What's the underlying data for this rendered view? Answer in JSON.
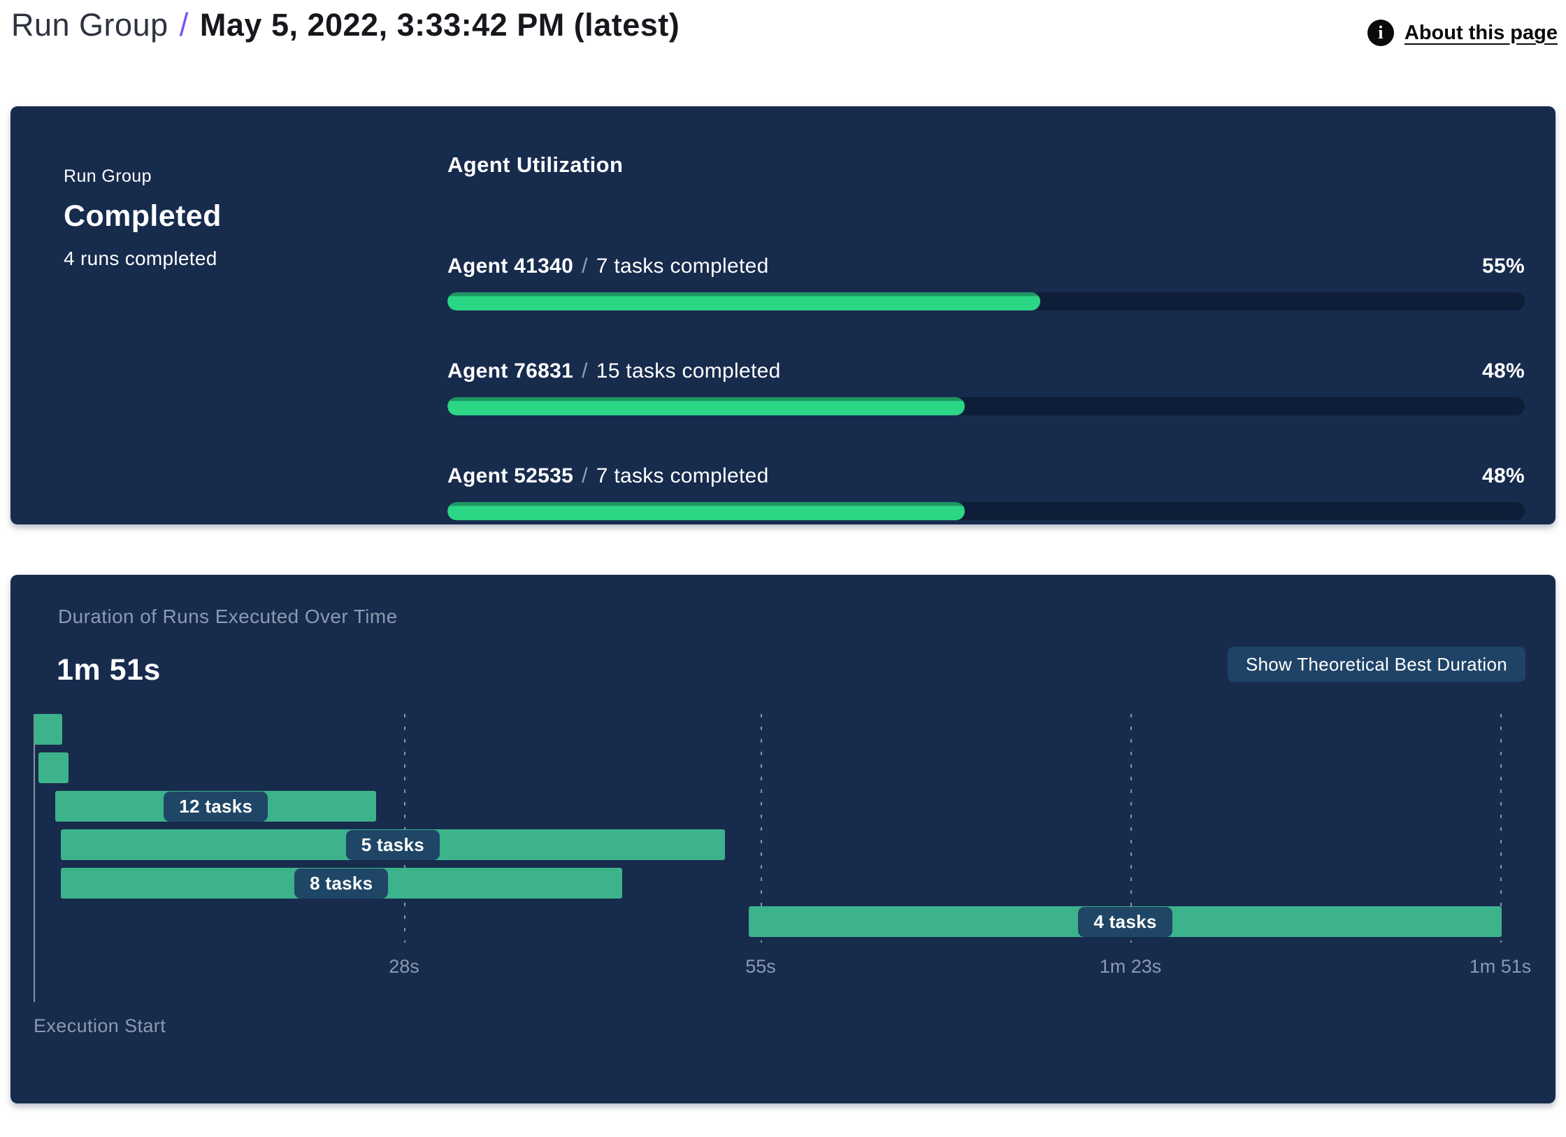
{
  "header": {
    "breadcrumb": "Run Group",
    "separator": "/",
    "title": "May 5, 2022, 3:33:42 PM (latest)",
    "about_link": "About this page",
    "info_icon_glyph": "i"
  },
  "colors": {
    "panel_bg": "#172b4d",
    "track_bg": "#0f1e38",
    "utilization_green": "#2bd685",
    "utilization_green_rim": "#1f9663",
    "gantt_green": "#3cb38b",
    "label_pill_bg": "#1f4666",
    "button_bg": "#1e4367",
    "accent_purple": "#7a52f4",
    "muted_text": "#8c99b0"
  },
  "status_panel": {
    "group_label": "Run Group",
    "status": "Completed",
    "runs_summary": "4 runs completed",
    "utilization_title": "Agent Utilization"
  },
  "duration_panel": {
    "title": "Duration of Runs Executed Over Time",
    "total_duration": "1m 51s",
    "button_label": "Show Theoretical Best Duration",
    "execution_start_label": "Execution Start"
  },
  "chart_data": [
    {
      "type": "bar",
      "title": "Agent Utilization",
      "orientation": "horizontal",
      "unit": "%",
      "xlim": [
        0,
        100
      ],
      "categories": [
        "Agent 41340",
        "Agent 76831",
        "Agent 52535"
      ],
      "annotations": [
        "7 tasks completed",
        "15 tasks completed",
        "7 tasks completed"
      ],
      "values": [
        55,
        48,
        48
      ],
      "value_labels": [
        "55%",
        "48%",
        "48%"
      ],
      "separator": "/"
    },
    {
      "type": "gantt",
      "title": "Duration of Runs Executed Over Time",
      "total_duration_label": "1m 51s",
      "total_duration_seconds": 111,
      "x_axis_origin_label": "Execution Start",
      "x_ticks": [
        {
          "label": "28s",
          "seconds": 28
        },
        {
          "label": "55s",
          "seconds": 55
        },
        {
          "label": "1m 23s",
          "seconds": 83
        },
        {
          "label": "1m 51s",
          "seconds": 111
        }
      ],
      "bars": [
        {
          "label": "",
          "start_s": 0.0,
          "end_s": 2.1
        },
        {
          "label": "",
          "start_s": 0.3,
          "end_s": 2.6
        },
        {
          "label": "12 tasks",
          "start_s": 1.6,
          "end_s": 25.9
        },
        {
          "label": "5 tasks",
          "start_s": 2.0,
          "end_s": 52.3
        },
        {
          "label": "8 tasks",
          "start_s": 2.0,
          "end_s": 44.5
        },
        {
          "label": "4 tasks",
          "start_s": 54.1,
          "end_s": 111.1
        }
      ]
    }
  ]
}
